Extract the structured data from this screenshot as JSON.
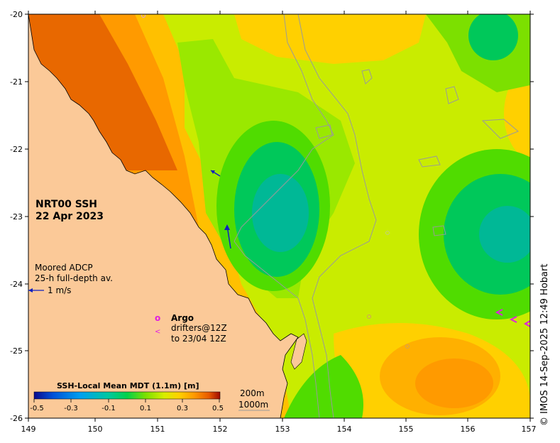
{
  "product": {
    "line1": "NRT00 SSH",
    "line2": "22 Apr 2023"
  },
  "adcp_legend": {
    "line1": "Moored ADCP",
    "line2": "25-h full-depth av.",
    "scale_label": "1 m/s"
  },
  "argo_legend": {
    "symbol": "o",
    "label": "Argo"
  },
  "drifter_legend": {
    "symbol": "<",
    "line1": "drifters@12Z",
    "line2": "to 23/04 12Z"
  },
  "colorbar": {
    "title": "SSH-Local Mean MDT (1.1m) [m]",
    "ticks": [
      "-0.5",
      "-0.3",
      "-0.1",
      "0.1",
      "0.3",
      "0.5"
    ],
    "range": [
      -0.5,
      0.5
    ],
    "colors": [
      "#0a0a8c",
      "#0050d8",
      "#00a0f0",
      "#00c8a0",
      "#00d24a",
      "#7ce000",
      "#d8ee00",
      "#ffd000",
      "#ff9a00",
      "#e85a00",
      "#a00a00"
    ]
  },
  "isobaths": {
    "a": "200m",
    "b": "1000m"
  },
  "axes": {
    "lon_ticks": [
      "149",
      "150",
      "151",
      "152",
      "153",
      "154",
      "155",
      "156",
      "157"
    ],
    "lat_ticks": [
      "-20",
      "-21",
      "-22",
      "-23",
      "-24",
      "-25",
      "-26"
    ],
    "lon_range": [
      149,
      157
    ],
    "lat_range": [
      -26,
      -20
    ]
  },
  "credit": "© IMOS 14-Sep-2025 12:49 Hobart",
  "colors": {
    "land": "#fbc998",
    "frame": "#000000",
    "adcp_arrow": "#1020c0",
    "argo": "#e020e0",
    "drifter": "#e020e0"
  }
}
